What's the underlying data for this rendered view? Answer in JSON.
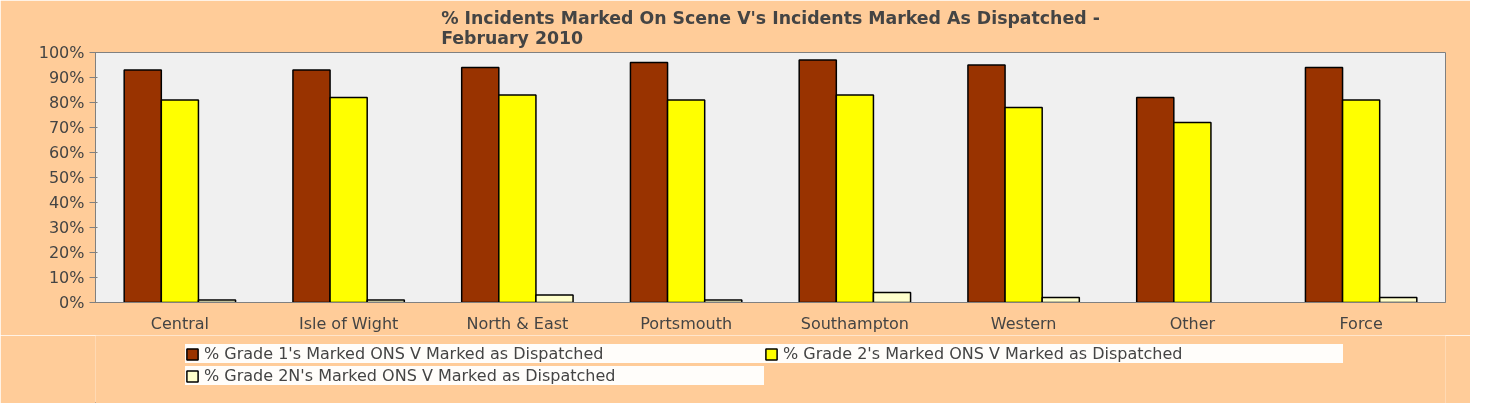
{
  "chart_data": {
    "type": "bar",
    "title": "% Incidents Marked On Scene V's Incidents Marked As Dispatched -\nFebruary 2010",
    "categories": [
      "Central",
      "Isle of Wight",
      "North & East",
      "Portsmouth",
      "Southampton",
      "Western",
      "Other",
      "Force"
    ],
    "series": [
      {
        "name": "% Grade 1's Marked ONS V Marked as Dispatched",
        "color": "#993300",
        "values": [
          93,
          93,
          94,
          96,
          97,
          95,
          82,
          94
        ]
      },
      {
        "name": "% Grade 2's Marked ONS V Marked as Dispatched",
        "color": "#ffff00",
        "values": [
          81,
          82,
          83,
          81,
          83,
          78,
          72,
          81
        ]
      },
      {
        "name": "% Grade 2N's Marked ONS V Marked as Dispatched",
        "color": "#ffffcc",
        "values": [
          1,
          1,
          3,
          1,
          4,
          2,
          null,
          2
        ]
      }
    ],
    "ylim": [
      0,
      100
    ],
    "yticks": [
      {
        "value": 0,
        "label": "0%"
      },
      {
        "value": 10,
        "label": "10%"
      },
      {
        "value": 20,
        "label": "20%"
      },
      {
        "value": 30,
        "label": "30%"
      },
      {
        "value": 40,
        "label": "40%"
      },
      {
        "value": 50,
        "label": "50%"
      },
      {
        "value": 60,
        "label": "60%"
      },
      {
        "value": 70,
        "label": "70%"
      },
      {
        "value": 80,
        "label": "80%"
      },
      {
        "value": 90,
        "label": "90%"
      },
      {
        "value": 100,
        "label": "100%"
      }
    ],
    "legend": "bottom",
    "grid": false
  }
}
